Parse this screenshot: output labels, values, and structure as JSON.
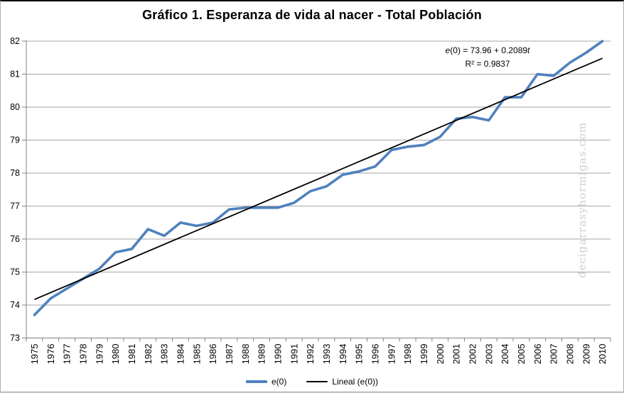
{
  "title": "Gráfico 1. Esperanza de vida al nacer - Total Población",
  "watermark": "decigarrasyhormigas.com",
  "annotation": {
    "e": "e",
    "mid": "(0) = 73.96 + 0.2089",
    "t": "t",
    "line2": "R² = 0.9837"
  },
  "legend": [
    {
      "label": "e(0)",
      "color": "#4F81BD",
      "thickness": 4
    },
    {
      "label": "Lineal (e(0))",
      "color": "#000000",
      "thickness": 2
    }
  ],
  "colors": {
    "series": "#4F81BD",
    "trend": "#000000",
    "gridline": "#A6A6A6",
    "axis": "#808080",
    "watermark": "#cfcfcf"
  },
  "chart_data": {
    "type": "line",
    "title": "Gráfico 1. Esperanza de vida al nacer - Total Población",
    "xlabel": "",
    "ylabel": "",
    "ylim": [
      73,
      82
    ],
    "ytick_step": 1,
    "grid": "horizontal",
    "legend_position": "bottom",
    "equation": "e(0) = 73.96 + 0.2089t",
    "r_squared": 0.9837,
    "x": [
      1975,
      1976,
      1977,
      1978,
      1979,
      1980,
      1981,
      1982,
      1983,
      1984,
      1985,
      1986,
      1987,
      1988,
      1989,
      1990,
      1991,
      1992,
      1993,
      1994,
      1995,
      1996,
      1997,
      1998,
      1999,
      2000,
      2001,
      2002,
      2003,
      2004,
      2005,
      2006,
      2007,
      2008,
      2009,
      2010
    ],
    "series": [
      {
        "name": "e(0)",
        "color": "#4F81BD",
        "values": [
          73.7,
          74.2,
          74.5,
          74.8,
          75.1,
          75.6,
          75.7,
          76.3,
          76.1,
          76.5,
          76.4,
          76.5,
          76.9,
          76.95,
          76.95,
          76.95,
          77.1,
          77.45,
          77.6,
          77.95,
          78.05,
          78.2,
          78.7,
          78.8,
          78.85,
          79.1,
          79.65,
          79.7,
          79.6,
          80.3,
          80.3,
          81.0,
          80.95,
          81.35,
          81.65,
          82.0
        ]
      },
      {
        "name": "Lineal (e(0))",
        "color": "#000000",
        "trend": {
          "intercept": 73.96,
          "slope": 0.2089,
          "t_first": 1,
          "t_last": 36
        }
      }
    ]
  }
}
